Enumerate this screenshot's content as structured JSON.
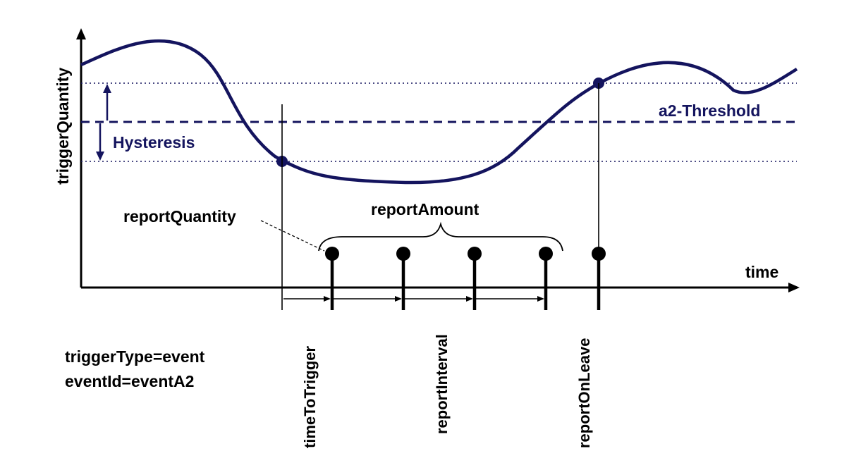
{
  "colors": {
    "navy": "#14145e",
    "black": "#000000",
    "background": "#ffffff"
  },
  "axes": {
    "y_label": "triggerQuantity",
    "x_label": "time"
  },
  "labels": {
    "threshold": "a2-Threshold",
    "hysteresis": "Hysteresis",
    "report_quantity": "reportQuantity",
    "report_amount": "reportAmount",
    "time_to_trigger": "timeToTrigger",
    "report_interval": "reportInterval",
    "report_on_leave": "reportOnLeave"
  },
  "config": {
    "trigger_type": "triggerType=event",
    "event_id": "eventId=eventA2"
  },
  "reports": {
    "periodic_count": 4,
    "leave_report_count": 1
  }
}
